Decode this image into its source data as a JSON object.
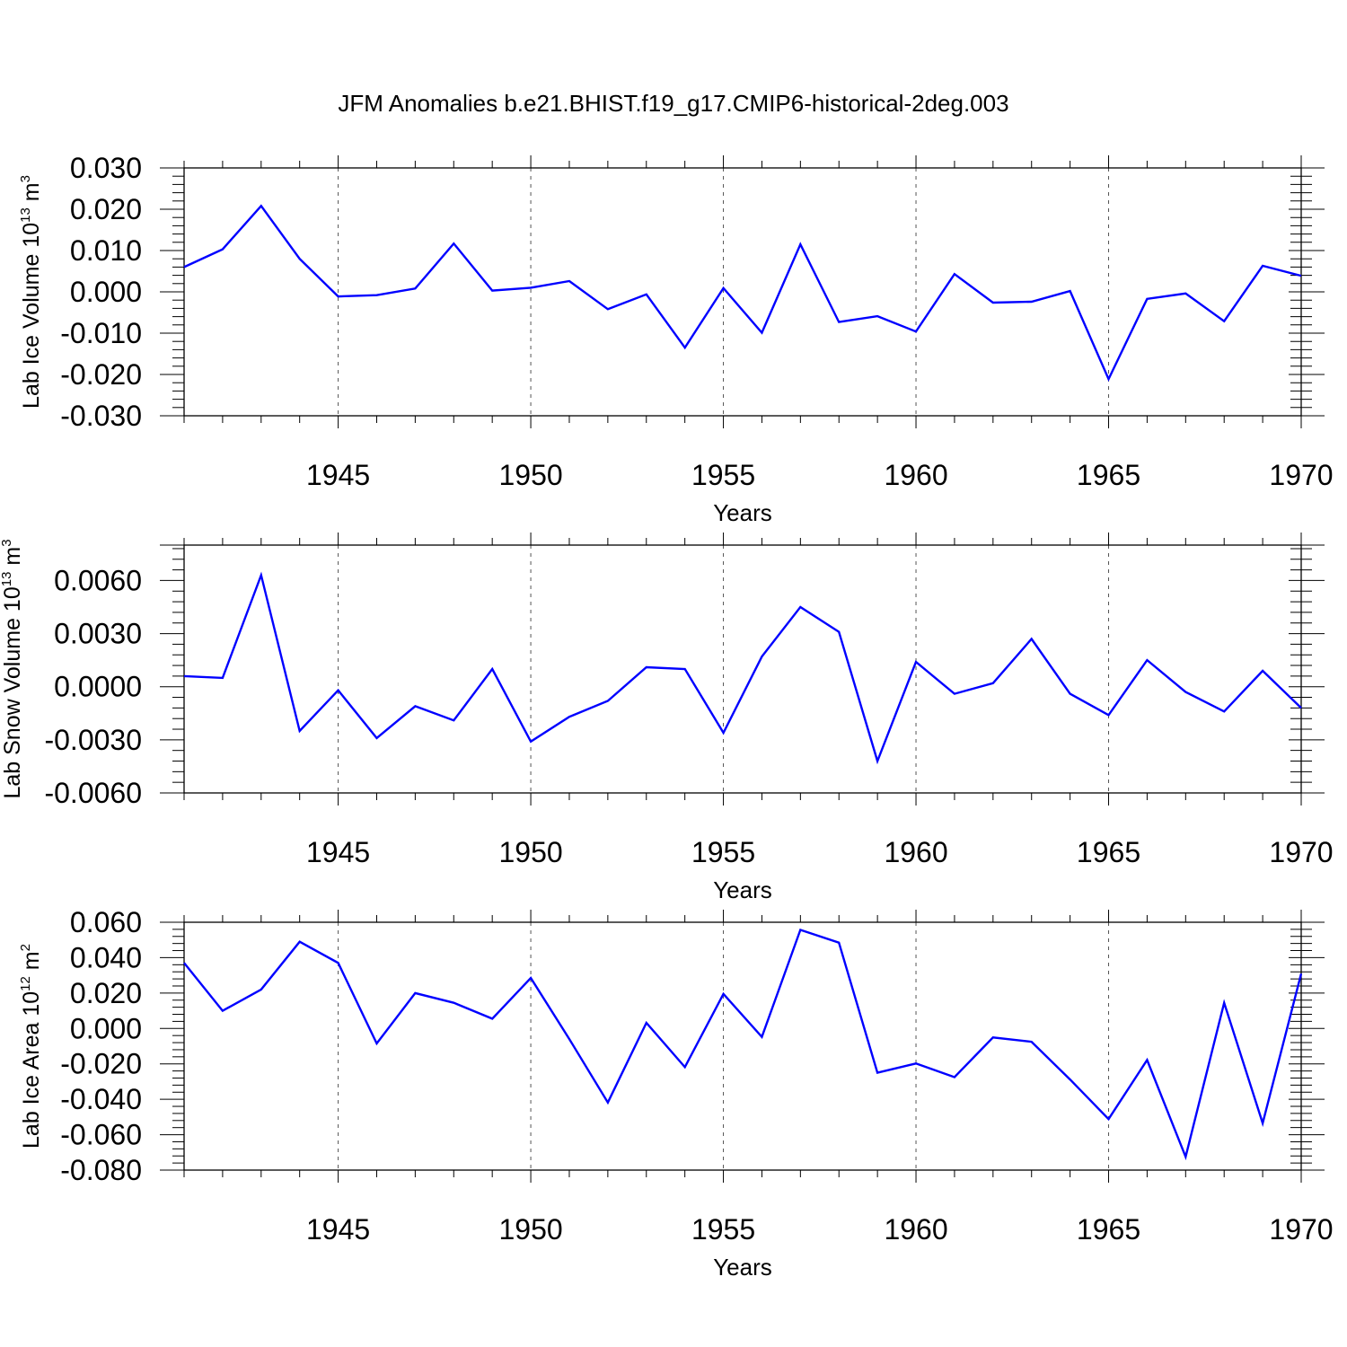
{
  "title": "JFM Anomalies b.e21.BHIST.f19_g17.CMIP6-historical-2deg.003",
  "line_color": "#0000ff",
  "chart_data": [
    {
      "type": "line",
      "ylabel": "Lab Ice Volume 10",
      "ylabel_exp": "13",
      "ylabel_unit": " m",
      "ylabel_unit_exp": "3",
      "xlabel": "Years",
      "xlim": [
        1941,
        1970
      ],
      "ylim": [
        -0.03,
        0.03
      ],
      "yticks": [
        -0.03,
        -0.02,
        -0.01,
        0.0,
        0.01,
        0.02,
        0.03
      ],
      "ytick_labels": [
        "-0.030",
        "-0.020",
        "-0.010",
        "0.000",
        "0.010",
        "0.020",
        "0.030"
      ],
      "xticks": [
        1945,
        1950,
        1955,
        1960,
        1965,
        1970
      ],
      "xtick_labels": [
        "1945",
        "1950",
        "1955",
        "1960",
        "1965",
        "1970"
      ],
      "series": [
        {
          "name": "Lab Ice Volume",
          "x": [
            1941,
            1942,
            1943,
            1944,
            1945,
            1946,
            1947,
            1948,
            1949,
            1950,
            1951,
            1952,
            1953,
            1954,
            1955,
            1956,
            1957,
            1958,
            1959,
            1960,
            1961,
            1962,
            1963,
            1964,
            1965,
            1966,
            1967,
            1968,
            1969,
            1970
          ],
          "values": [
            0.006,
            0.0103,
            0.0208,
            0.008,
            -0.0011,
            -0.0008,
            0.0008,
            0.0117,
            0.0003,
            0.001,
            0.0026,
            -0.0042,
            -0.0006,
            -0.0135,
            0.0009,
            -0.0099,
            0.0115,
            -0.0073,
            -0.0059,
            -0.0096,
            0.0043,
            -0.0026,
            -0.0024,
            0.0002,
            -0.0211,
            -0.0017,
            -0.0004,
            -0.0071,
            0.0063,
            0.0039
          ]
        }
      ]
    },
    {
      "type": "line",
      "ylabel": "Lab Snow Volume 10",
      "ylabel_exp": "13",
      "ylabel_unit": " m",
      "ylabel_unit_exp": "3",
      "xlabel": "Years",
      "xlim": [
        1941,
        1970
      ],
      "ylim": [
        -0.006,
        0.008
      ],
      "yticks": [
        -0.006,
        -0.003,
        0.0,
        0.003,
        0.006
      ],
      "ytick_labels": [
        "-0.0060",
        "-0.0030",
        "0.0000",
        "0.0030",
        "0.0060"
      ],
      "xticks": [
        1945,
        1950,
        1955,
        1960,
        1965,
        1970
      ],
      "xtick_labels": [
        "1945",
        "1950",
        "1955",
        "1960",
        "1965",
        "1970"
      ],
      "series": [
        {
          "name": "Lab Snow Volume",
          "x": [
            1941,
            1942,
            1943,
            1944,
            1945,
            1946,
            1947,
            1948,
            1949,
            1950,
            1951,
            1952,
            1953,
            1954,
            1955,
            1956,
            1957,
            1958,
            1959,
            1960,
            1961,
            1962,
            1963,
            1964,
            1965,
            1966,
            1967,
            1968,
            1969,
            1970
          ],
          "values": [
            0.0006,
            0.0005,
            0.0063,
            -0.0025,
            -0.0002,
            -0.0029,
            -0.0011,
            -0.0019,
            0.001,
            -0.0031,
            -0.0017,
            -0.0008,
            0.0011,
            0.001,
            -0.0026,
            0.0017,
            0.0045,
            0.0031,
            -0.0042,
            0.0014,
            -0.0004,
            0.0002,
            0.0027,
            -0.0004,
            -0.0016,
            0.0015,
            -0.0003,
            -0.0014,
            0.0009,
            -0.0012
          ]
        }
      ]
    },
    {
      "type": "line",
      "ylabel": "Lab Ice Area 10",
      "ylabel_exp": "12",
      "ylabel_unit": " m",
      "ylabel_unit_exp": "2",
      "xlabel": "Years",
      "xlim": [
        1941,
        1970
      ],
      "ylim": [
        -0.08,
        0.06
      ],
      "yticks": [
        -0.08,
        -0.06,
        -0.04,
        -0.02,
        0.0,
        0.02,
        0.04,
        0.06
      ],
      "ytick_labels": [
        "-0.080",
        "-0.060",
        "-0.040",
        "-0.020",
        "0.000",
        "0.020",
        "0.040",
        "0.060"
      ],
      "xticks": [
        1945,
        1950,
        1955,
        1960,
        1965,
        1970
      ],
      "xtick_labels": [
        "1945",
        "1950",
        "1955",
        "1960",
        "1965",
        "1970"
      ],
      "series": [
        {
          "name": "Lab Ice Area",
          "x": [
            1941,
            1942,
            1943,
            1944,
            1945,
            1946,
            1947,
            1948,
            1949,
            1950,
            1951,
            1952,
            1953,
            1954,
            1955,
            1956,
            1957,
            1958,
            1959,
            1960,
            1961,
            1962,
            1963,
            1964,
            1965,
            1966,
            1967,
            1968,
            1969,
            1970
          ],
          "values": [
            0.037,
            0.01,
            0.022,
            0.049,
            0.037,
            -0.0085,
            0.02,
            0.0145,
            0.0055,
            0.0285,
            -0.006,
            -0.0418,
            0.0032,
            -0.0218,
            0.0195,
            -0.0048,
            0.0557,
            0.0485,
            -0.025,
            -0.0198,
            -0.0275,
            -0.0051,
            -0.0075,
            -0.0288,
            -0.0512,
            -0.0178,
            -0.0725,
            0.0145,
            -0.0535,
            0.031
          ]
        }
      ]
    }
  ]
}
